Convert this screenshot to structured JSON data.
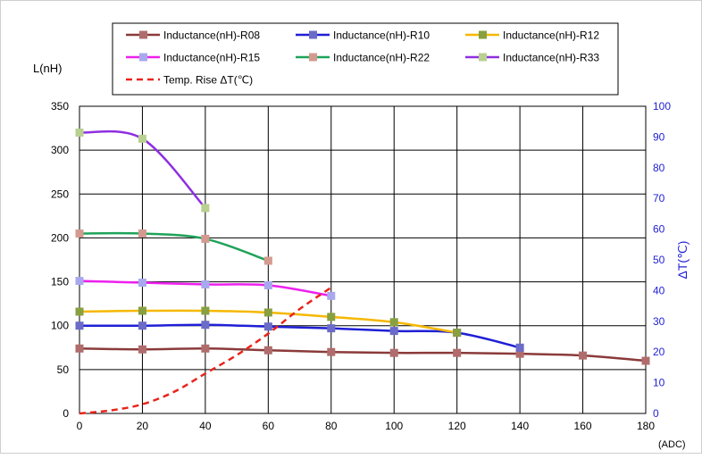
{
  "chart_data": {
    "type": "line",
    "x_unit": "(ADC)",
    "ylabel_left": "L(nH)",
    "ylabel_right": "ΔT(℃)",
    "x_ticks": [
      0,
      20,
      40,
      60,
      80,
      100,
      120,
      140,
      160,
      180
    ],
    "y_left_ticks": [
      0,
      50,
      100,
      150,
      200,
      250,
      300,
      350
    ],
    "y_right_ticks": [
      0,
      10,
      20,
      30,
      40,
      50,
      60,
      70,
      80,
      90,
      100
    ],
    "xlim": [
      0,
      180
    ],
    "ylim_left": [
      0,
      350
    ],
    "ylim_right": [
      0,
      100
    ],
    "grid": true,
    "legend_position": "top",
    "series": [
      {
        "name": "Inductance(nH)-R08",
        "color": "#8b3a3a",
        "marker_color": "#b06c6c",
        "axis": "left",
        "style": "solid",
        "x": [
          0,
          20,
          40,
          60,
          80,
          100,
          120,
          140,
          160,
          180
        ],
        "y": [
          74,
          73,
          74,
          72,
          70,
          69,
          69,
          68,
          66,
          60
        ]
      },
      {
        "name": "Inductance(nH)-R10",
        "color": "#1f1fd6",
        "marker_color": "#6b6bc8",
        "axis": "left",
        "style": "solid",
        "x": [
          0,
          20,
          40,
          60,
          80,
          100,
          120,
          140
        ],
        "y": [
          100,
          100,
          101,
          99,
          97,
          94,
          92,
          75
        ]
      },
      {
        "name": "Inductance(nH)-R12",
        "color": "#f5b800",
        "marker_color": "#88a040",
        "axis": "left",
        "style": "solid",
        "x": [
          0,
          20,
          40,
          60,
          80,
          100,
          120
        ],
        "y": [
          116,
          117,
          117,
          115,
          110,
          104,
          92
        ]
      },
      {
        "name": "Inductance(nH)-R15",
        "color": "#ee20ee",
        "marker_color": "#a8a8ee",
        "axis": "left",
        "style": "solid",
        "x": [
          0,
          20,
          40,
          60,
          80
        ],
        "y": [
          151,
          149,
          147,
          146,
          134
        ]
      },
      {
        "name": "Inductance(nH)-R22",
        "color": "#1fa35a",
        "marker_color": "#d49a90",
        "axis": "left",
        "style": "solid",
        "x": [
          0,
          20,
          40,
          60
        ],
        "y": [
          205,
          205,
          199,
          174
        ]
      },
      {
        "name": "Inductance(nH)-R33",
        "color": "#8f2fe0",
        "marker_color": "#b8d090",
        "axis": "left",
        "style": "solid",
        "x": [
          0,
          20,
          40
        ],
        "y": [
          320,
          313,
          234
        ]
      },
      {
        "name": "Temp. Rise ΔT(℃)",
        "color": "#e8241c",
        "axis": "right",
        "style": "dashed",
        "x": [
          0,
          10,
          20,
          30,
          40,
          50,
          60,
          70,
          80
        ],
        "y": [
          0,
          1,
          3,
          7,
          13,
          19,
          26,
          34,
          41
        ]
      }
    ]
  }
}
